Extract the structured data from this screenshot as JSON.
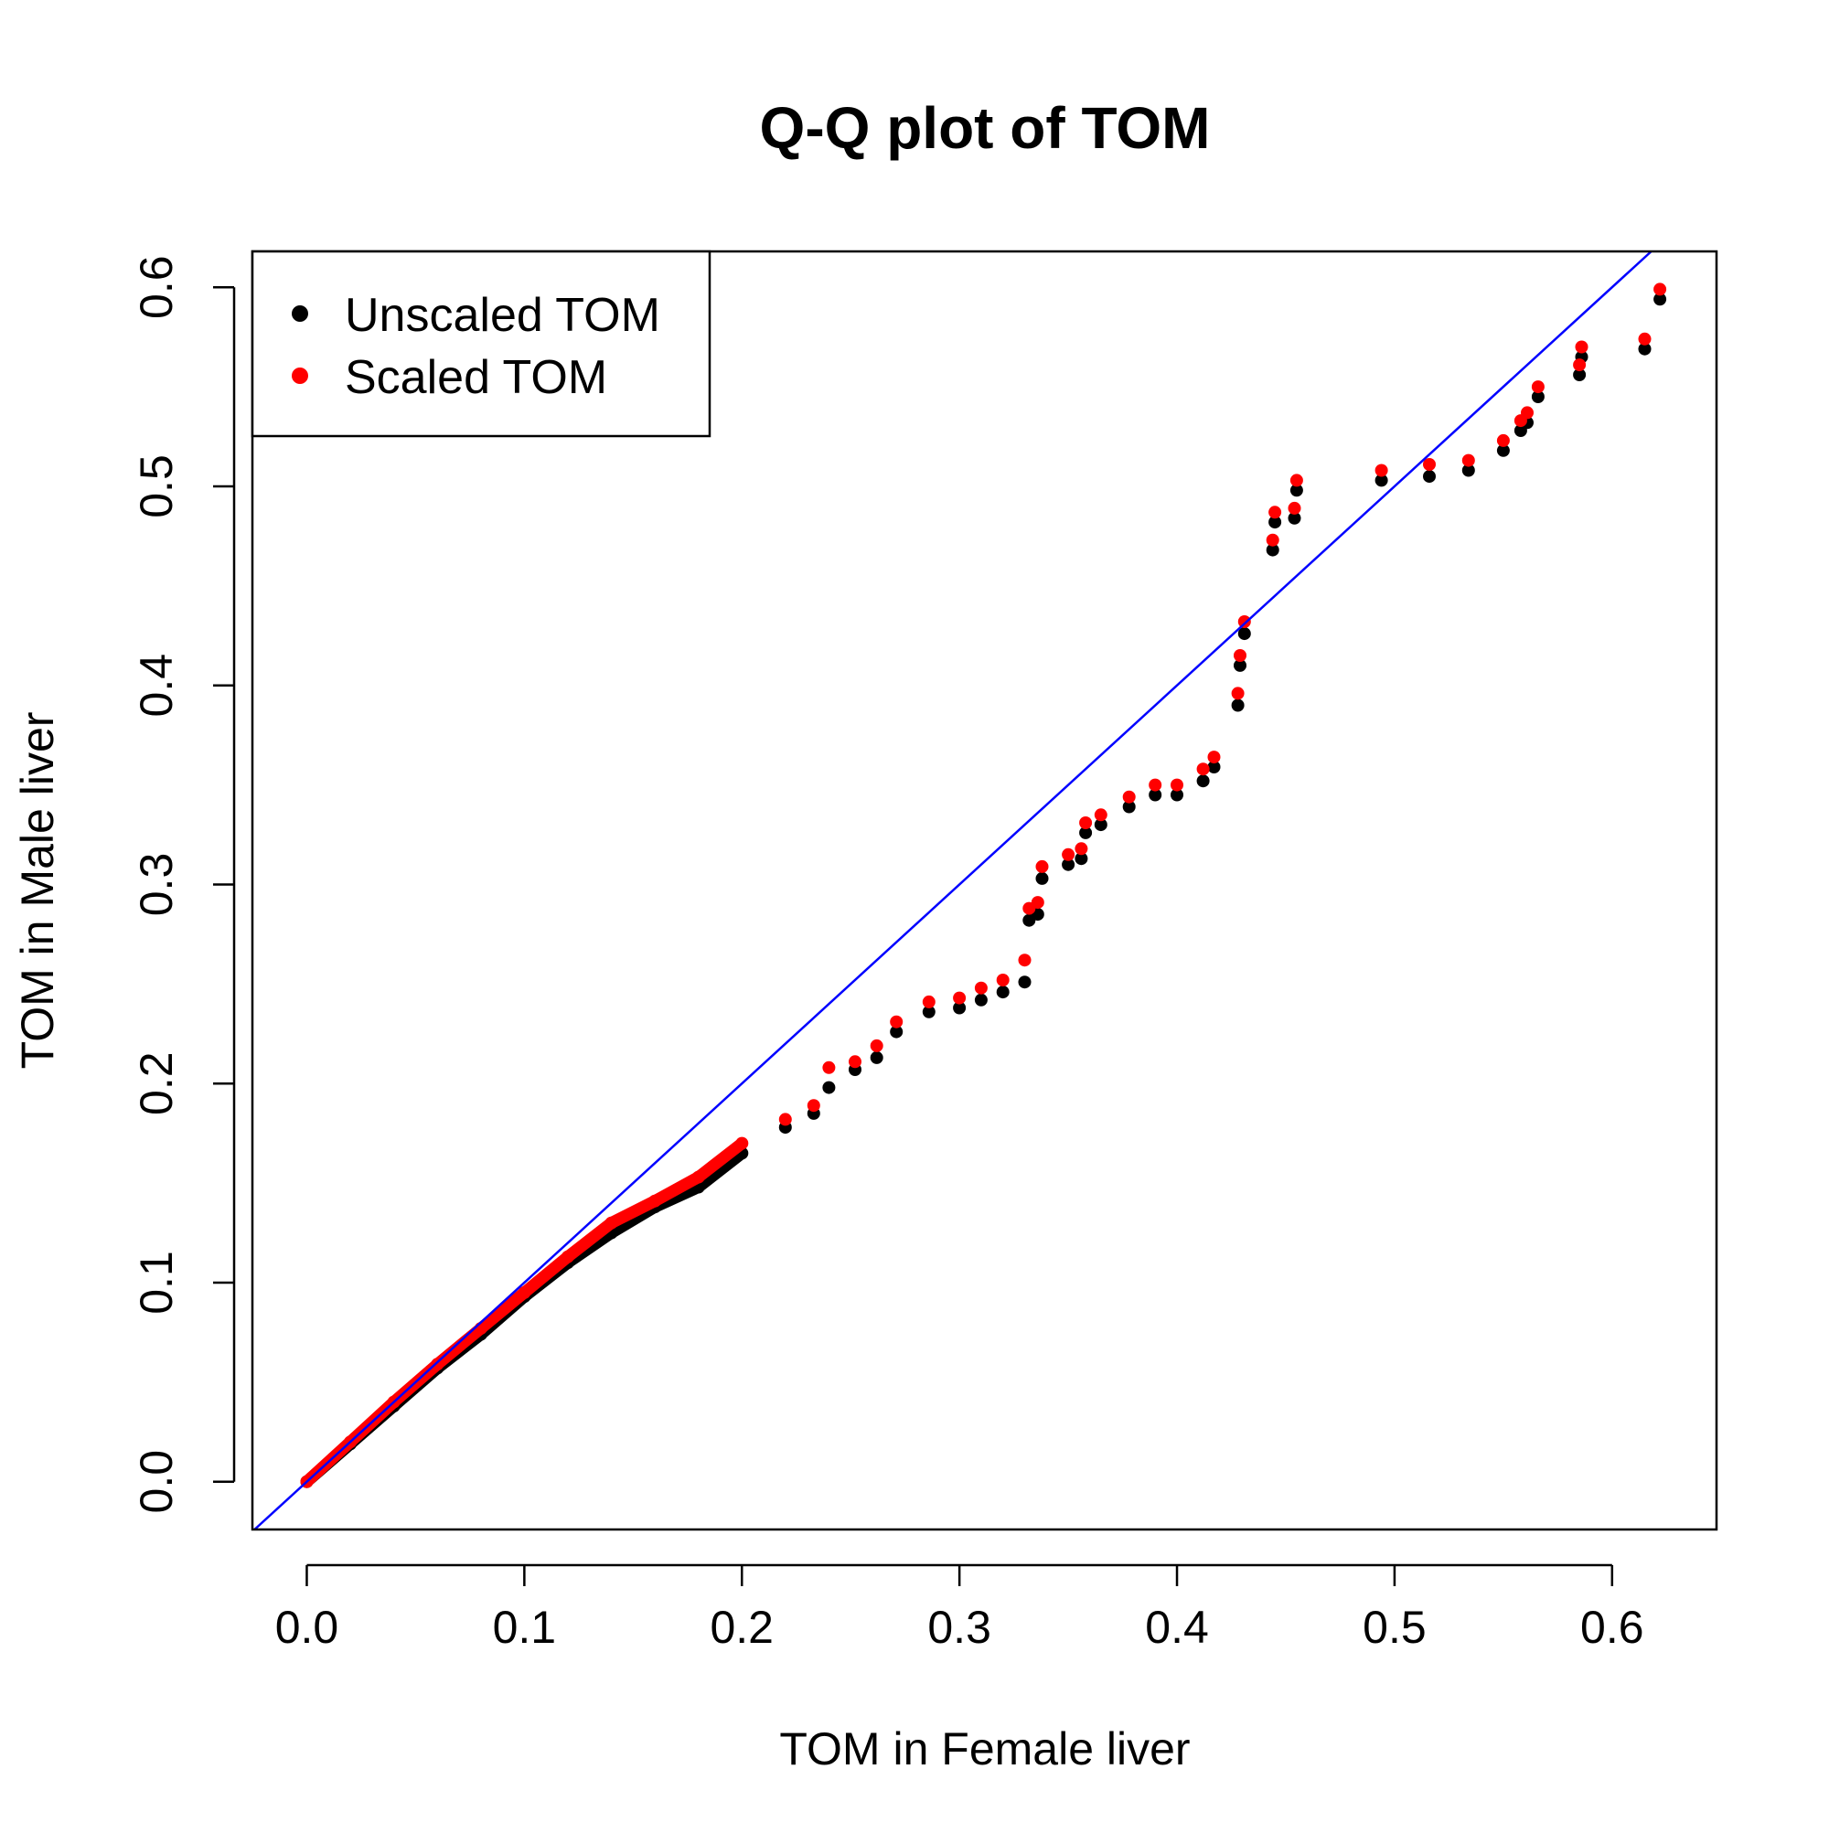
{
  "chart_data": {
    "type": "scatter",
    "title": "Q-Q plot of TOM",
    "xlabel": "TOM in Female liver",
    "ylabel": "TOM in Male liver",
    "xlim": [
      -0.025,
      0.648
    ],
    "ylim": [
      -0.024,
      0.618
    ],
    "xticks": [
      0.0,
      0.1,
      0.2,
      0.3,
      0.4,
      0.5,
      0.6
    ],
    "xtick_labels": [
      "0.0",
      "0.1",
      "0.2",
      "0.3",
      "0.4",
      "0.5",
      "0.6"
    ],
    "yticks": [
      0.0,
      0.1,
      0.2,
      0.3,
      0.4,
      0.5,
      0.6
    ],
    "ytick_labels": [
      "0.0",
      "0.1",
      "0.2",
      "0.3",
      "0.4",
      "0.5",
      "0.6"
    ],
    "grid": false,
    "legend_position": "top-left",
    "reference_line": {
      "slope": 1,
      "intercept": 0,
      "color": "#0000ff"
    },
    "series": [
      {
        "name": "Unscaled TOM",
        "color": "#000000",
        "points": [
          [
            0.0,
            0.0
          ],
          [
            0.02,
            0.019
          ],
          [
            0.04,
            0.038
          ],
          [
            0.06,
            0.057
          ],
          [
            0.08,
            0.074
          ],
          [
            0.1,
            0.093
          ],
          [
            0.12,
            0.11
          ],
          [
            0.14,
            0.125
          ],
          [
            0.16,
            0.138
          ],
          [
            0.18,
            0.148
          ],
          [
            0.2,
            0.165
          ],
          [
            0.22,
            0.178
          ],
          [
            0.233,
            0.185
          ],
          [
            0.24,
            0.198
          ],
          [
            0.252,
            0.207
          ],
          [
            0.262,
            0.213
          ],
          [
            0.271,
            0.226
          ],
          [
            0.286,
            0.236
          ],
          [
            0.3,
            0.238
          ],
          [
            0.31,
            0.242
          ],
          [
            0.32,
            0.246
          ],
          [
            0.33,
            0.251
          ],
          [
            0.332,
            0.282
          ],
          [
            0.336,
            0.285
          ],
          [
            0.338,
            0.303
          ],
          [
            0.35,
            0.31
          ],
          [
            0.356,
            0.313
          ],
          [
            0.358,
            0.326
          ],
          [
            0.365,
            0.33
          ],
          [
            0.378,
            0.339
          ],
          [
            0.39,
            0.345
          ],
          [
            0.4,
            0.345
          ],
          [
            0.412,
            0.352
          ],
          [
            0.417,
            0.359
          ],
          [
            0.428,
            0.39
          ],
          [
            0.429,
            0.41
          ],
          [
            0.431,
            0.426
          ],
          [
            0.444,
            0.468
          ],
          [
            0.445,
            0.482
          ],
          [
            0.454,
            0.484
          ],
          [
            0.455,
            0.498
          ],
          [
            0.494,
            0.503
          ],
          [
            0.516,
            0.505
          ],
          [
            0.534,
            0.508
          ],
          [
            0.55,
            0.518
          ],
          [
            0.558,
            0.528
          ],
          [
            0.561,
            0.532
          ],
          [
            0.566,
            0.545
          ],
          [
            0.585,
            0.556
          ],
          [
            0.586,
            0.565
          ],
          [
            0.615,
            0.569
          ],
          [
            0.622,
            0.594
          ]
        ]
      },
      {
        "name": "Scaled TOM",
        "color": "#ff0000",
        "points": [
          [
            0.0,
            0.0
          ],
          [
            0.02,
            0.02
          ],
          [
            0.04,
            0.04
          ],
          [
            0.06,
            0.059
          ],
          [
            0.08,
            0.077
          ],
          [
            0.1,
            0.095
          ],
          [
            0.12,
            0.113
          ],
          [
            0.14,
            0.13
          ],
          [
            0.16,
            0.141
          ],
          [
            0.18,
            0.153
          ],
          [
            0.2,
            0.17
          ],
          [
            0.22,
            0.182
          ],
          [
            0.233,
            0.189
          ],
          [
            0.24,
            0.208
          ],
          [
            0.252,
            0.211
          ],
          [
            0.262,
            0.219
          ],
          [
            0.271,
            0.231
          ],
          [
            0.286,
            0.241
          ],
          [
            0.3,
            0.243
          ],
          [
            0.31,
            0.248
          ],
          [
            0.32,
            0.252
          ],
          [
            0.33,
            0.262
          ],
          [
            0.332,
            0.288
          ],
          [
            0.336,
            0.291
          ],
          [
            0.338,
            0.309
          ],
          [
            0.35,
            0.315
          ],
          [
            0.356,
            0.318
          ],
          [
            0.358,
            0.331
          ],
          [
            0.365,
            0.335
          ],
          [
            0.378,
            0.344
          ],
          [
            0.39,
            0.35
          ],
          [
            0.4,
            0.35
          ],
          [
            0.412,
            0.358
          ],
          [
            0.417,
            0.364
          ],
          [
            0.428,
            0.396
          ],
          [
            0.429,
            0.415
          ],
          [
            0.431,
            0.432
          ],
          [
            0.444,
            0.473
          ],
          [
            0.445,
            0.487
          ],
          [
            0.454,
            0.489
          ],
          [
            0.455,
            0.503
          ],
          [
            0.494,
            0.508
          ],
          [
            0.516,
            0.511
          ],
          [
            0.534,
            0.513
          ],
          [
            0.55,
            0.523
          ],
          [
            0.558,
            0.533
          ],
          [
            0.561,
            0.537
          ],
          [
            0.566,
            0.55
          ],
          [
            0.585,
            0.561
          ],
          [
            0.586,
            0.57
          ],
          [
            0.615,
            0.574
          ],
          [
            0.622,
            0.599
          ]
        ]
      }
    ]
  }
}
